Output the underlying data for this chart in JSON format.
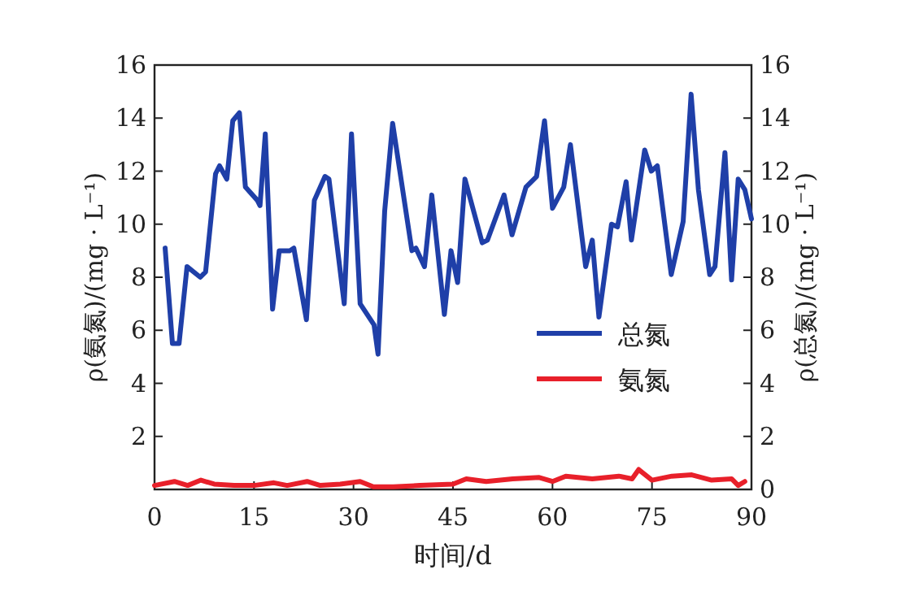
{
  "chart_data": {
    "type": "line",
    "xlabel": "时间/d",
    "ylabel": "ρ(氨氮)/(mg · L⁻¹)",
    "y2label": "ρ(总氮)/(mg · L⁻¹)",
    "xlim": [
      0,
      90
    ],
    "xticks": [
      0,
      15,
      30,
      45,
      60,
      75,
      90
    ],
    "ylim": [
      0,
      16
    ],
    "yticks": [
      2,
      4,
      6,
      8,
      10,
      12,
      14,
      16
    ],
    "y2lim": [
      0,
      16
    ],
    "y2ticks": [
      0,
      2,
      4,
      6,
      8,
      10,
      12,
      14,
      16
    ],
    "legend": "right",
    "grid": false,
    "line_style": "solid",
    "marker": "none",
    "series": [
      {
        "name": "总氮",
        "color": "#1f3fa8",
        "x": [
          1.6,
          2.7,
          3.7,
          4.9,
          6.9,
          7.7,
          9.2,
          9.8,
          10.9,
          11.8,
          12.8,
          13.7,
          15.5,
          15.9,
          16.7,
          17.8,
          18.8,
          20.4,
          21,
          22.9,
          24.1,
          25.7,
          26.3,
          28.6,
          29.7,
          31,
          33.1,
          33.7,
          34.7,
          35.9,
          38.8,
          39.4,
          40.7,
          41.8,
          43.7,
          44.7,
          45.7,
          46.8,
          49.4,
          50.2,
          52.7,
          53.9,
          56,
          57.6,
          58.8,
          60,
          61.7,
          62.7,
          65,
          66,
          67,
          68.9,
          69.8,
          71.1,
          71.9,
          73.9,
          74.9,
          75.8,
          77.9,
          79.7,
          80.9,
          82,
          83.7,
          84.5,
          86,
          87,
          88,
          89,
          90
        ],
        "values": [
          9.1,
          5.5,
          5.5,
          8.4,
          8.0,
          8.2,
          11.9,
          12.2,
          11.7,
          13.9,
          14.2,
          11.4,
          10.9,
          10.7,
          13.4,
          6.8,
          9.0,
          9.0,
          9.1,
          6.4,
          10.9,
          11.8,
          11.7,
          7.0,
          13.4,
          7.0,
          6.2,
          5.1,
          10.5,
          13.8,
          9.0,
          9.1,
          8.4,
          11.1,
          6.6,
          9.0,
          7.8,
          11.7,
          9.3,
          9.4,
          11.1,
          9.6,
          11.4,
          11.8,
          13.9,
          10.6,
          11.4,
          13.0,
          8.4,
          9.4,
          6.5,
          10.0,
          9.9,
          11.6,
          9.4,
          12.8,
          12.0,
          12.2,
          8.1,
          10.1,
          14.9,
          11.3,
          8.1,
          8.4,
          12.7,
          7.9,
          11.7,
          11.3,
          10.2
        ]
      },
      {
        "name": "氨氮",
        "color": "#e8202a",
        "x": [
          0,
          3,
          5,
          7,
          9,
          12,
          15,
          18,
          20,
          23,
          25,
          28,
          31,
          33,
          36,
          40,
          45,
          47,
          50,
          54,
          58,
          60,
          62,
          66,
          70,
          72,
          73,
          75,
          78,
          81,
          84,
          87,
          88,
          89
        ],
        "values": [
          0.15,
          0.3,
          0.15,
          0.35,
          0.2,
          0.15,
          0.15,
          0.25,
          0.15,
          0.3,
          0.15,
          0.2,
          0.3,
          0.1,
          0.1,
          0.15,
          0.2,
          0.4,
          0.3,
          0.4,
          0.45,
          0.3,
          0.5,
          0.4,
          0.5,
          0.4,
          0.75,
          0.35,
          0.5,
          0.55,
          0.35,
          0.4,
          0.15,
          0.3
        ]
      }
    ]
  }
}
